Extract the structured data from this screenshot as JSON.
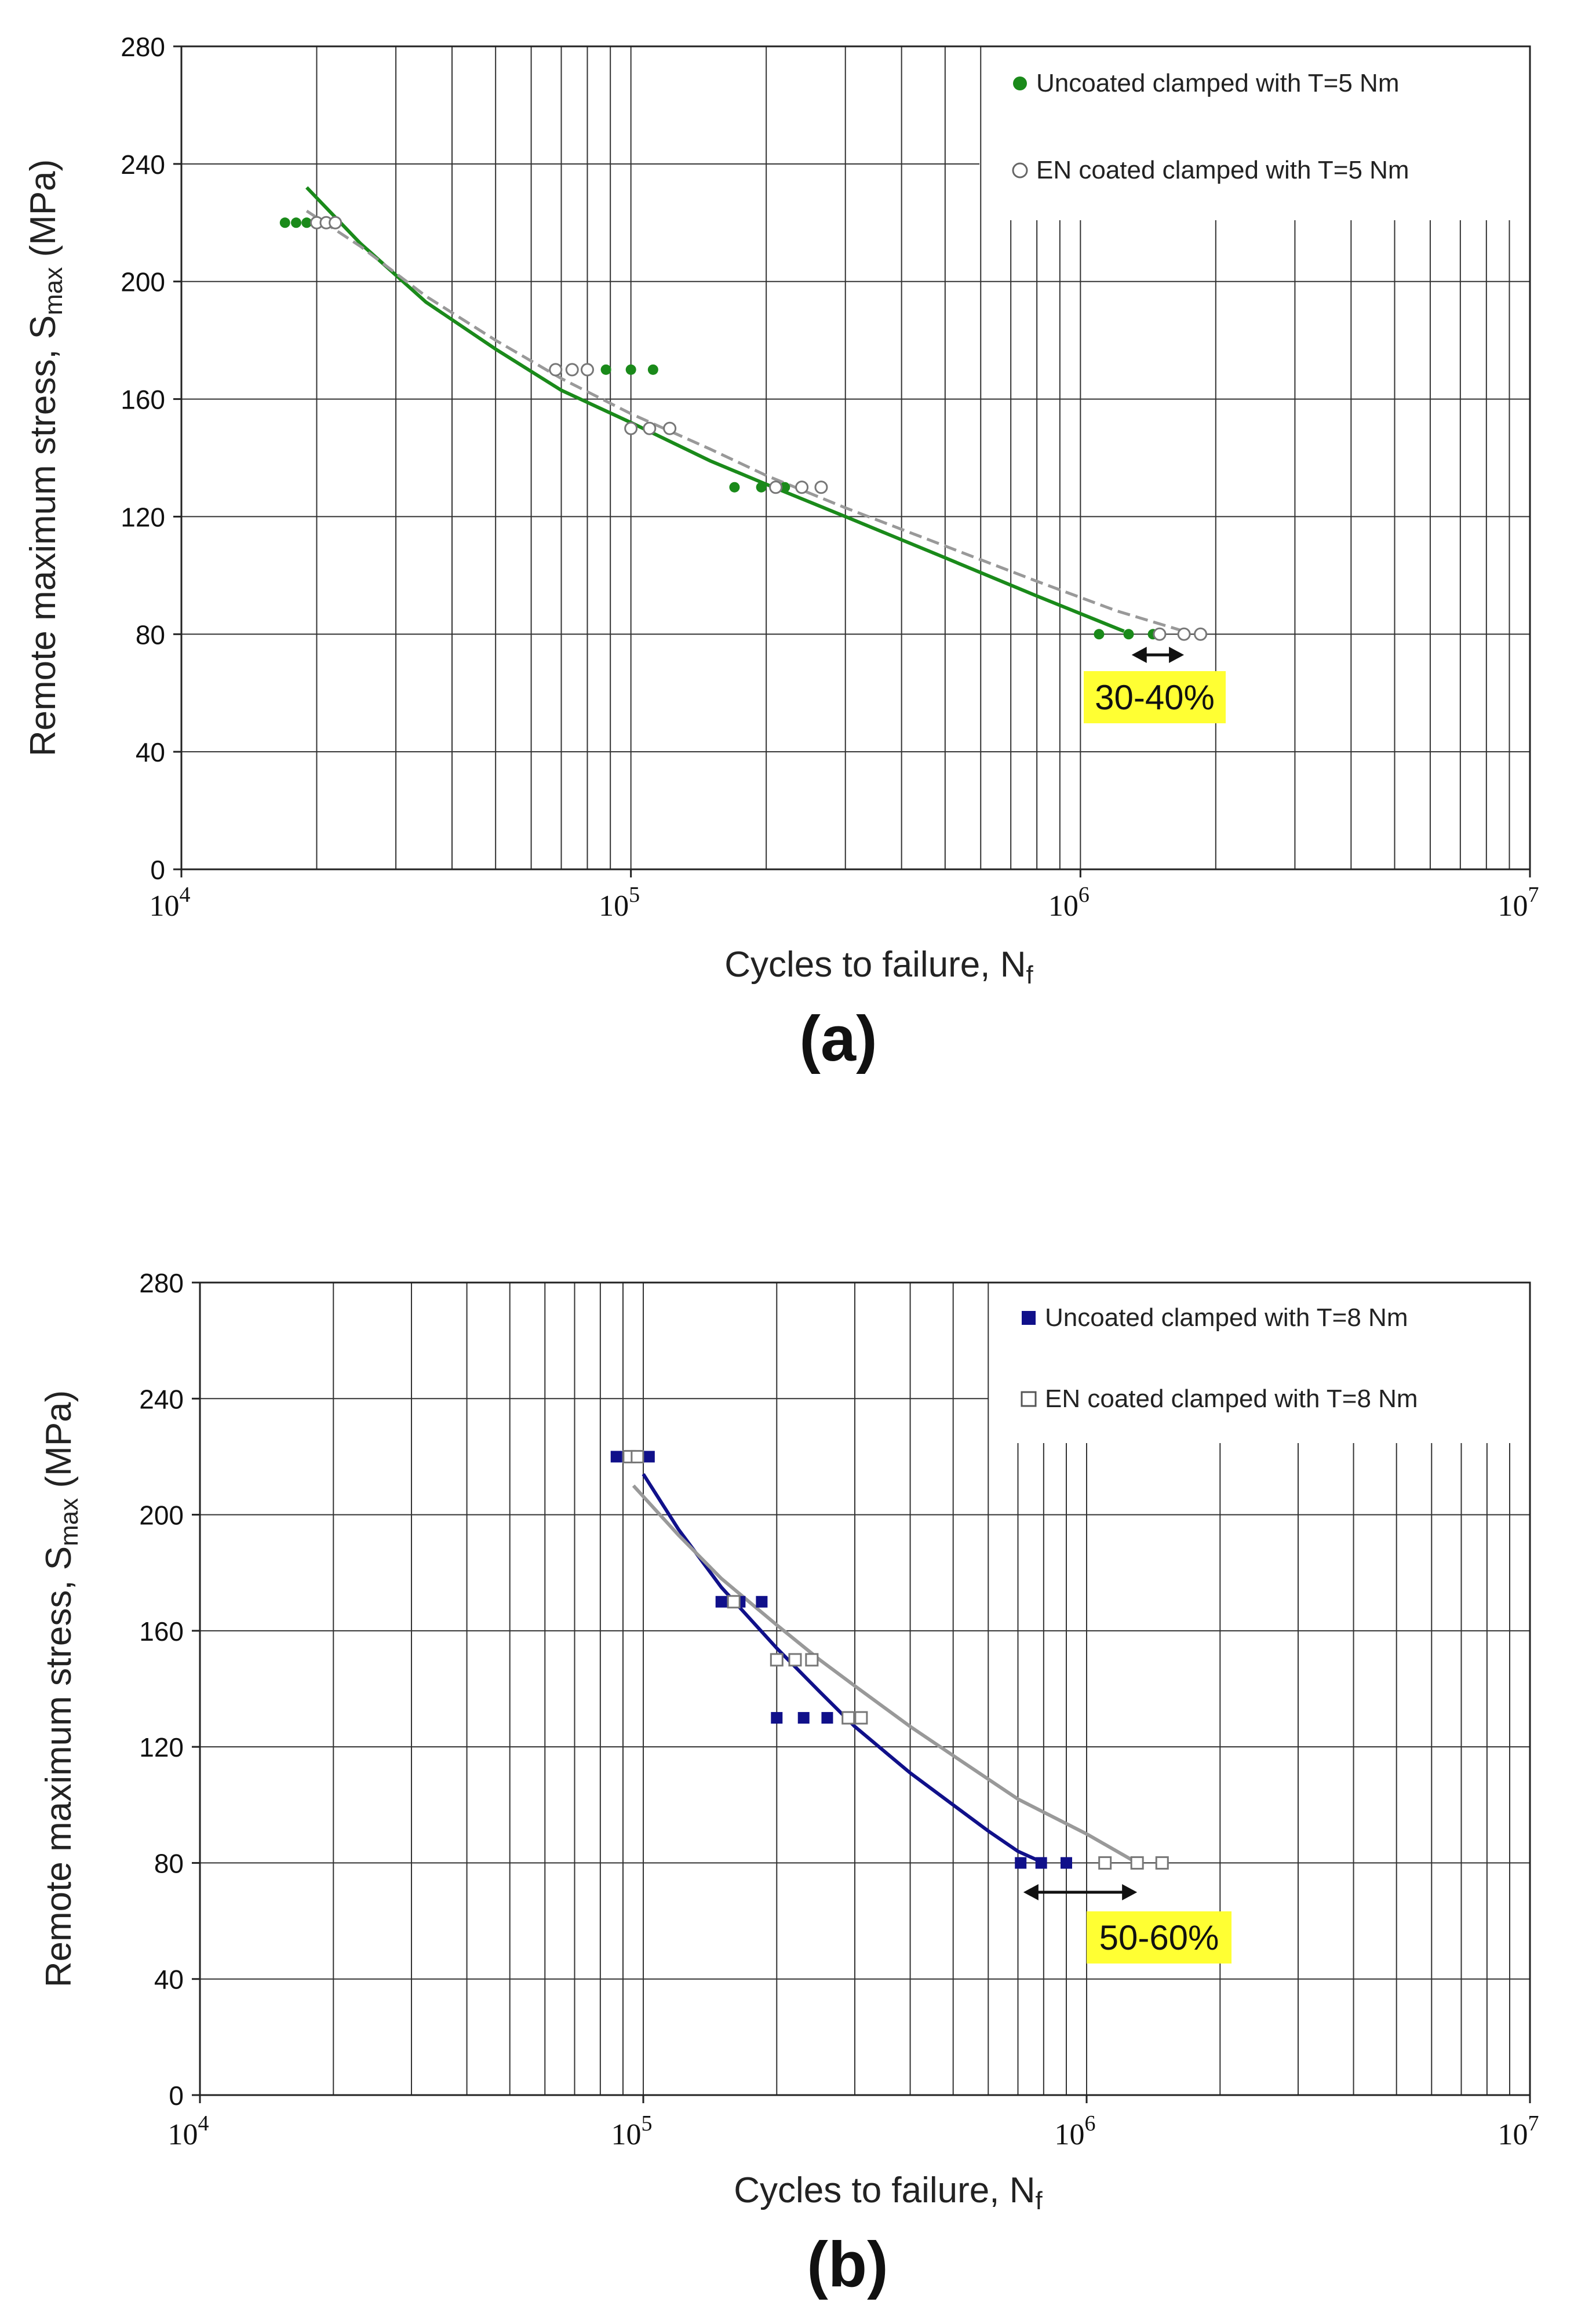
{
  "chart_data": [
    {
      "type": "scatter",
      "panel_label": "(a)",
      "xlabel": "Cycles to failure, N",
      "xlabel_sub": "f",
      "ylabel": "Remote maximum stress, S",
      "ylabel_sub": "max",
      "ylabel_unit": " (MPa)",
      "xscale": "log",
      "xlim": [
        10000,
        10000000
      ],
      "ylim": [
        0,
        280
      ],
      "yticks": [
        "0",
        "40",
        "80",
        "120",
        "160",
        "200",
        "240",
        "280"
      ],
      "xticks": [
        {
          "base": "10",
          "exp": "4"
        },
        {
          "base": "10",
          "exp": "5"
        },
        {
          "base": "10",
          "exp": "6"
        },
        {
          "base": "10",
          "exp": "7"
        }
      ],
      "grid": true,
      "legend_position": "top-right",
      "series": [
        {
          "name": "Uncoated clamped with T=5 Nm",
          "marker": "filled-circle",
          "color": "#1a8a1a",
          "points": [
            [
              17000,
              220
            ],
            [
              18000,
              220
            ],
            [
              19000,
              220
            ],
            [
              20000,
              220
            ],
            [
              88000,
              170
            ],
            [
              100000,
              170
            ],
            [
              112000,
              170
            ],
            [
              170000,
              130
            ],
            [
              195000,
              130
            ],
            [
              220000,
              130
            ],
            [
              1100000,
              80
            ],
            [
              1280000,
              80
            ],
            [
              1450000,
              80
            ]
          ],
          "fit": [
            [
              19000,
              232
            ],
            [
              25000,
              213
            ],
            [
              35000,
              193
            ],
            [
              50000,
              177
            ],
            [
              70000,
              163
            ],
            [
              100000,
              152
            ],
            [
              150000,
              139
            ],
            [
              200000,
              131
            ],
            [
              300000,
              120
            ],
            [
              500000,
              106
            ],
            [
              800000,
              93
            ],
            [
              1250000,
              81
            ]
          ]
        },
        {
          "name": "EN coated clamped with T=5 Nm",
          "marker": "open-circle",
          "color": "#9a9a9a",
          "points": [
            [
              20000,
              220
            ],
            [
              21000,
              220
            ],
            [
              22000,
              220
            ],
            [
              68000,
              170
            ],
            [
              74000,
              170
            ],
            [
              80000,
              170
            ],
            [
              100000,
              150
            ],
            [
              110000,
              150
            ],
            [
              122000,
              150
            ],
            [
              210000,
              130
            ],
            [
              240000,
              130
            ],
            [
              265000,
              130
            ],
            [
              1500000,
              80
            ],
            [
              1700000,
              80
            ],
            [
              1850000,
              80
            ]
          ],
          "fit": [
            [
              19000,
              224
            ],
            [
              25000,
              212
            ],
            [
              35000,
              195
            ],
            [
              50000,
              180
            ],
            [
              70000,
              167
            ],
            [
              100000,
              155
            ],
            [
              150000,
              143
            ],
            [
              200000,
              134
            ],
            [
              300000,
              123
            ],
            [
              500000,
              110
            ],
            [
              800000,
              98
            ],
            [
              1200000,
              88
            ],
            [
              1700000,
              81
            ]
          ]
        }
      ],
      "annotation": {
        "text": "30-40%",
        "color": "#ffff33",
        "from_x": 1300000,
        "to_x": 1700000,
        "y": 80
      }
    },
    {
      "type": "scatter",
      "panel_label": "(b)",
      "xlabel": "Cycles to failure, N",
      "xlabel_sub": "f",
      "ylabel": "Remote maximum stress, S",
      "ylabel_sub": "max",
      "ylabel_unit": " (MPa)",
      "xscale": "log",
      "xlim": [
        10000,
        10000000
      ],
      "ylim": [
        0,
        280
      ],
      "yticks": [
        "0",
        "40",
        "80",
        "120",
        "160",
        "200",
        "240",
        "280"
      ],
      "xticks": [
        {
          "base": "10",
          "exp": "4"
        },
        {
          "base": "10",
          "exp": "5"
        },
        {
          "base": "10",
          "exp": "6"
        },
        {
          "base": "10",
          "exp": "7"
        }
      ],
      "grid": true,
      "legend_position": "top-right",
      "series": [
        {
          "name": "Uncoated clamped with T=8 Nm",
          "marker": "filled-square",
          "color": "#10108a",
          "points": [
            [
              87000,
              220
            ],
            [
              96000,
              220
            ],
            [
              103000,
              220
            ],
            [
              150000,
              170
            ],
            [
              165000,
              170
            ],
            [
              185000,
              170
            ],
            [
              200000,
              130
            ],
            [
              230000,
              130
            ],
            [
              260000,
              130
            ],
            [
              710000,
              80
            ],
            [
              790000,
              80
            ],
            [
              900000,
              80
            ]
          ],
          "fit": [
            [
              100000,
              214
            ],
            [
              120000,
              195
            ],
            [
              150000,
              175
            ],
            [
              200000,
              154
            ],
            [
              250000,
              139
            ],
            [
              300000,
              127
            ],
            [
              400000,
              111
            ],
            [
              500000,
              100
            ],
            [
              600000,
              91
            ],
            [
              700000,
              84
            ],
            [
              800000,
              80
            ]
          ]
        },
        {
          "name": "EN coated clamped with T=8 Nm",
          "marker": "open-square",
          "color": "#9a9a9a",
          "points": [
            [
              93000,
              220
            ],
            [
              97000,
              220
            ],
            [
              160000,
              170
            ],
            [
              200000,
              150
            ],
            [
              220000,
              150
            ],
            [
              240000,
              150
            ],
            [
              290000,
              130
            ],
            [
              310000,
              130
            ],
            [
              1100000,
              80
            ],
            [
              1300000,
              80
            ],
            [
              1480000,
              80
            ]
          ],
          "fit": [
            [
              95000,
              210
            ],
            [
              120000,
              193
            ],
            [
              150000,
              178
            ],
            [
              200000,
              162
            ],
            [
              250000,
              150
            ],
            [
              300000,
              141
            ],
            [
              400000,
              127
            ],
            [
              500000,
              117
            ],
            [
              700000,
              102
            ],
            [
              1000000,
              90
            ],
            [
              1300000,
              80
            ]
          ]
        }
      ],
      "annotation": {
        "text": "50-60%",
        "color": "#ffff33",
        "from_x": 720000,
        "to_x": 1300000,
        "y": 80
      }
    }
  ]
}
